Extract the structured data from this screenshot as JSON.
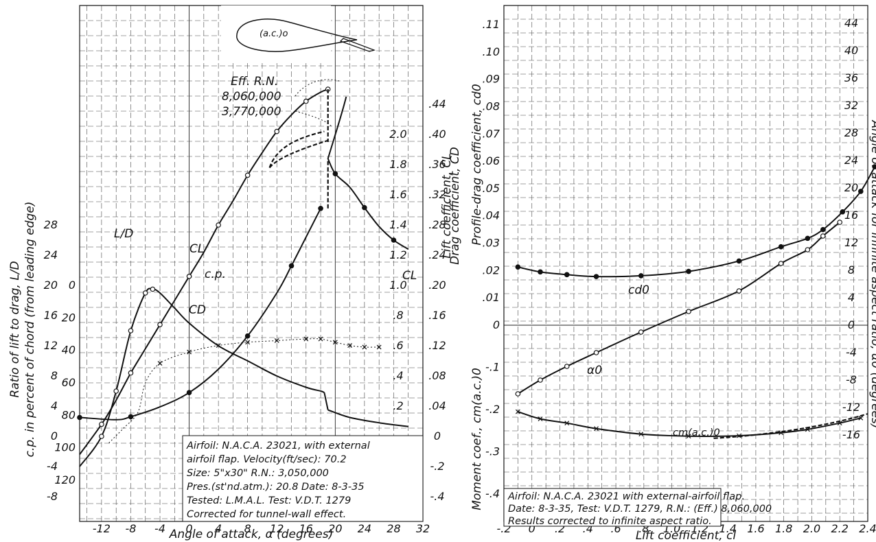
{
  "left_panel": {
    "airfoil_label": "(a.c.)o",
    "x_axis": {
      "label": "Angle of attack, α (degrees)",
      "ticks": [
        "-12",
        "-8",
        "-4",
        "0",
        "4",
        "8",
        "12",
        "16",
        "20",
        "24",
        "28",
        "32"
      ]
    },
    "axis_ld": {
      "label": "Ratio of lift to drag, L/D",
      "ticks": [
        "-8",
        "-4",
        "0",
        "4",
        "8",
        "12",
        "16",
        "20",
        "24",
        "28"
      ]
    },
    "axis_cp": {
      "label": "c.p. in percent of chord (from leading edge)",
      "ticks": [
        "120",
        "100",
        "80",
        "60",
        "40",
        "20",
        "0"
      ]
    },
    "axis_cl": {
      "label": "Lift coefficient, CL",
      "ticks": [
        ".2",
        ".4",
        ".6",
        ".8",
        "1.0",
        "1.2",
        "1.4",
        "1.6",
        "1.8",
        "2.0"
      ]
    },
    "axis_cd": {
      "label": "Drag coefficient, CD",
      "ticks": [
        ".44",
        ".40",
        ".36",
        ".32",
        ".28",
        ".24",
        ".20",
        ".16",
        ".12",
        ".08",
        ".04",
        "0",
        "-.2",
        "-.4"
      ]
    },
    "curve_labels": {
      "cl": "CL",
      "cd": "CD",
      "cp": "c.p.",
      "ld": "L/D",
      "cl_axis_note": "CL"
    },
    "reynolds_note": {
      "title": "Eff. R.N.",
      "values": [
        "8,060,000",
        "3,770,000"
      ]
    },
    "info_box": [
      "Airfoil: N.A.C.A. 23021, with external",
      "airfoil flap.      Velocity(ft/sec): 70.2",
      "Size: 5\"x30\"               R.N.: 3,050,000",
      "Pres.(st'nd.atm.): 20.8   Date: 8-3-35",
      "Tested: L.M.A.L.        Test: V.D.T. 1279",
      "Corrected for tunnel-wall effect."
    ]
  },
  "right_panel": {
    "x_axis": {
      "label": "Lift coefficient, cl",
      "ticks": [
        "-.2",
        "0",
        ".2",
        ".4",
        ".6",
        ".8",
        "1.0",
        "1.2",
        "1.4",
        "1.6",
        "1.8",
        "2.0",
        "2.2",
        "2.4"
      ]
    },
    "axis_cd0": {
      "label": "Profile-drag coefficient, cd0",
      "ticks": [
        ".11",
        ".10",
        ".09",
        ".08",
        ".07",
        ".06",
        ".05",
        ".04",
        ".03",
        ".02",
        ".01",
        "0"
      ]
    },
    "axis_cm": {
      "label": "Moment coef., cm(a.c.)0",
      "ticks": [
        "-.1",
        "-.2",
        "-.3",
        "-.4"
      ]
    },
    "axis_alpha": {
      "label": "Angle of attack for infinite aspect ratio, α0 (degrees)",
      "ticks": [
        "44",
        "40",
        "36",
        "32",
        "28",
        "24",
        "20",
        "16",
        "12",
        "8",
        "4",
        "0",
        "-4",
        "-8",
        "-12",
        "-16"
      ]
    },
    "curve_labels": {
      "cd0": "cd0",
      "alpha0": "α0",
      "cm": "cm(a.c.)0"
    },
    "info_box": [
      "Airfoil: N.A.C.A. 23021 with external-airfoil flap.",
      "Date: 8-3-35,  Test: V.D.T. 1279,   R.N.: (Eff.) 8,060,000",
      "Results corrected to infinite aspect ratio."
    ]
  },
  "chart_data": [
    {
      "type": "line",
      "title": "",
      "xlabel": "Angle of attack, α (degrees)",
      "xlim": [
        -15,
        32
      ],
      "series": [
        {
          "name": "CL",
          "axis": "Lift coefficient, CL",
          "x": [
            -15,
            -12,
            -10,
            -8,
            -6,
            -4,
            -2,
            0,
            2,
            4,
            6,
            8,
            10,
            12,
            14,
            16,
            18,
            19
          ],
          "y": [
            -0.12,
            0.08,
            0.24,
            0.42,
            0.58,
            0.74,
            0.9,
            1.06,
            1.22,
            1.4,
            1.56,
            1.73,
            1.88,
            2.02,
            2.13,
            2.22,
            2.28,
            2.3
          ]
        },
        {
          "name": "CD",
          "axis": "Drag coefficient, CD",
          "x": [
            -15,
            -10,
            -8,
            -4,
            0,
            4,
            8,
            12,
            14,
            16,
            18,
            19,
            20,
            22,
            24,
            26,
            28,
            30
          ],
          "y": [
            0.025,
            0.022,
            0.026,
            0.039,
            0.058,
            0.089,
            0.133,
            0.19,
            0.226,
            0.264,
            0.302,
            0.368,
            0.348,
            0.33,
            0.303,
            0.278,
            0.26,
            0.248
          ]
        },
        {
          "name": "c.p.",
          "axis": "c.p. in percent of chord (from leading edge)",
          "x": [
            -11,
            -9,
            -7,
            -6,
            -4,
            0,
            4,
            8,
            12,
            16,
            18,
            20,
            22,
            24,
            26
          ],
          "y": [
            97,
            88,
            78,
            60,
            48,
            41,
            37,
            35,
            34,
            33,
            33,
            35,
            37,
            38,
            38
          ]
        },
        {
          "name": "L/D",
          "axis": "Ratio of lift to drag, L/D",
          "x": [
            -15,
            -12,
            -10,
            -8,
            -6,
            -5,
            -4,
            -2,
            0,
            4,
            8,
            12,
            16,
            18,
            18.5,
            19,
            22,
            26,
            30
          ],
          "y": [
            -4,
            0,
            6,
            14,
            19,
            19.5,
            19,
            17,
            15,
            12,
            10,
            8,
            6.5,
            6,
            5.8,
            3.5,
            2.5,
            1.8,
            1.3
          ]
        }
      ]
    },
    {
      "type": "line",
      "title": "",
      "xlabel": "Lift coefficient, cl",
      "xlim": [
        -0.2,
        2.4
      ],
      "series": [
        {
          "name": "cd0",
          "axis": "Profile-drag coefficient, cd0",
          "x": [
            -0.1,
            0.06,
            0.25,
            0.46,
            0.78,
            1.12,
            1.48,
            1.78,
            1.97,
            2.08,
            2.22,
            2.35,
            2.45
          ],
          "y": [
            0.0213,
            0.0195,
            0.0185,
            0.0178,
            0.0181,
            0.0197,
            0.0235,
            0.0287,
            0.0318,
            0.035,
            0.0415,
            0.049,
            0.058
          ]
        },
        {
          "name": "α0",
          "axis": "Angle of attack for infinite aspect ratio, α0 (degrees)",
          "x": [
            -0.1,
            0.06,
            0.25,
            0.46,
            0.78,
            1.12,
            1.48,
            1.78,
            1.97,
            2.08,
            2.2
          ],
          "y": [
            -10,
            -8,
            -6,
            -4,
            -1,
            2,
            5,
            9,
            11,
            13,
            15
          ]
        },
        {
          "name": "cm(a.c.)0",
          "axis": "Moment coef., cm(a.c.)0",
          "x": [
            -0.1,
            0.06,
            0.25,
            0.46,
            0.78,
            1.12,
            1.48,
            1.78,
            1.97,
            2.2,
            2.35
          ],
          "y": [
            -0.205,
            -0.222,
            -0.232,
            -0.245,
            -0.258,
            -0.263,
            -0.262,
            -0.255,
            -0.247,
            -0.232,
            -0.22
          ]
        }
      ]
    }
  ]
}
